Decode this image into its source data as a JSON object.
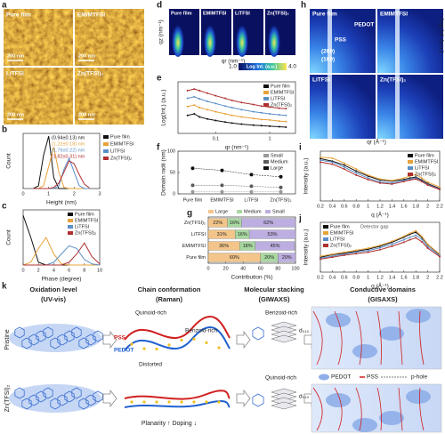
{
  "images": {
    "a": {
      "label": "a",
      "tiles": [
        "Pure film",
        "EMIMTFSI",
        "LiTFSI",
        "Zn(TFSI)₂"
      ],
      "scale": "200 nm"
    },
    "d": {
      "label": "d",
      "tiles": [
        "Pure film",
        "EMIMTFSI",
        "LiTFSI",
        "Zn(TFSI)₂"
      ],
      "ylabel": "qz (nm⁻¹)",
      "xlabel": "qr (nm⁻¹)",
      "colorbar": {
        "label": "Log Int. (a.u.)",
        "min": {
          "value": 1,
          "label": "1.0"
        },
        "max": {
          "value": 4,
          "label": "4.0"
        }
      }
    },
    "h": {
      "label": "h",
      "tiles": [
        "Pure film",
        "EMIMTFSI",
        "LiTFSI",
        "Zn(TFSI)₂"
      ],
      "peaks": [
        "(200)",
        "(100)"
      ],
      "phases": [
        "PSS",
        "PEDOT"
      ],
      "ylabel": "qz (Å⁻¹)",
      "xlabel": "qr (Å⁻¹)",
      "colorbar": "Log Int. (a.u.)"
    }
  },
  "chart_data": [
    {
      "type": "line",
      "label": "b",
      "xlabel": "Height (nm)",
      "ylabel": "Count",
      "x": [
        0.4,
        0.6,
        0.8,
        1.0,
        1.2,
        1.4,
        1.6,
        1.8,
        2.0,
        2.2,
        2.4,
        2.6
      ],
      "xlim": [
        0,
        3
      ],
      "xticks": [
        0,
        1,
        2,
        3
      ],
      "ylim": [
        0,
        1
      ],
      "legend": "right",
      "annotations": [
        "(0.94±0.13) nm",
        "(1.22±0.18) nm",
        "(1.76±0.22) nm",
        "(1.82±0.31) nm"
      ],
      "series": [
        {
          "name": "Pure film",
          "color": "#111111",
          "values": [
            0,
            0.05,
            0.6,
            0.95,
            0.2,
            0,
            0,
            0,
            0,
            0,
            0,
            0
          ]
        },
        {
          "name": "EMIMTFSI",
          "color": "#e8a23a",
          "values": [
            0,
            0,
            0.05,
            0.4,
            0.75,
            0.3,
            0.02,
            0,
            0,
            0,
            0,
            0
          ]
        },
        {
          "name": "LiTFSI",
          "color": "#5b8fc8",
          "values": [
            0,
            0,
            0,
            0,
            0,
            0.05,
            0.35,
            0.55,
            0.3,
            0.05,
            0,
            0
          ]
        },
        {
          "name": "Zn(TFSI)₂",
          "color": "#b03030",
          "values": [
            0,
            0,
            0,
            0,
            0.02,
            0.1,
            0.3,
            0.5,
            0.45,
            0.25,
            0.08,
            0.01
          ]
        }
      ]
    },
    {
      "type": "line",
      "label": "c",
      "xlabel": "Phase (degree)",
      "ylabel": "Count",
      "x": [
        0,
        1,
        2,
        3,
        4,
        5,
        6,
        7,
        8,
        9,
        10
      ],
      "xlim": [
        0,
        10
      ],
      "xticks": [
        0,
        2,
        4,
        6,
        8,
        10
      ],
      "ylim": [
        0,
        1
      ],
      "legend": "upper right",
      "series": [
        {
          "name": "Pure film",
          "color": "#111111",
          "values": [
            0.9,
            0.5,
            0.05,
            0,
            0,
            0,
            0,
            0,
            0,
            0,
            0
          ]
        },
        {
          "name": "EMIMTFSI",
          "color": "#e8a23a",
          "values": [
            0,
            0.05,
            0.3,
            0.5,
            0.2,
            0.02,
            0,
            0,
            0,
            0,
            0
          ]
        },
        {
          "name": "LiTFSI",
          "color": "#5b8fc8",
          "values": [
            0,
            0,
            0,
            0,
            0.05,
            0.2,
            0.35,
            0.3,
            0.1,
            0.02,
            0
          ]
        },
        {
          "name": "Zn(TFSI)₂",
          "color": "#b03030",
          "values": [
            0,
            0,
            0,
            0,
            0,
            0,
            0.05,
            0.2,
            0.4,
            0.15,
            0.02
          ]
        }
      ]
    },
    {
      "type": "line",
      "label": "e",
      "xlabel": "qr (nm⁻¹)",
      "ylabel": "Log(Int.) (a.u.)",
      "log_x": true,
      "markers": true,
      "x": [
        0.03,
        0.04,
        0.05,
        0.07,
        0.1,
        0.15,
        0.2,
        0.3,
        0.5,
        0.7,
        1,
        1.5,
        2
      ],
      "xlim": [
        0.02,
        3
      ],
      "xticks": [
        0.1,
        1
      ],
      "ylim": [
        0,
        10
      ],
      "legend": "upper right",
      "series": [
        {
          "name": "Pure film",
          "color": "#111111",
          "values": [
            3.5,
            3.8,
            3.2,
            2.8,
            2.5,
            2.2,
            2.0,
            1.8,
            1.6,
            1.5,
            1.4,
            1.3,
            1.2
          ]
        },
        {
          "name": "EMIMTFSI",
          "color": "#e8a23a",
          "values": [
            5.2,
            5.5,
            5.0,
            4.6,
            4.2,
            3.8,
            3.5,
            3.2,
            2.9,
            2.7,
            2.6,
            2.4,
            2.3
          ]
        },
        {
          "name": "LiTFSI",
          "color": "#5b8fc8",
          "values": [
            6.8,
            7.1,
            6.7,
            6.2,
            5.8,
            5.3,
            5.0,
            4.6,
            4.2,
            4.0,
            3.8,
            3.6,
            3.5
          ]
        },
        {
          "name": "Zn(TFSI)₂",
          "color": "#b03030",
          "values": [
            8.3,
            8.6,
            8.3,
            7.8,
            7.3,
            6.8,
            6.4,
            6.0,
            5.6,
            5.3,
            5.1,
            4.9,
            4.8
          ]
        }
      ]
    },
    {
      "type": "line",
      "label": "f",
      "ylabel": "Domain radii (nm)",
      "markers": true,
      "categories": [
        "Pure film",
        "EMIMTFSI",
        "LiTFSI",
        "Zn(TFSI)₂"
      ],
      "ylim": [
        0,
        100
      ],
      "yticks": [
        0,
        50,
        100
      ],
      "legend": "upper right",
      "series": [
        {
          "name": "Small",
          "color": "#9a9a9a",
          "values": [
            5,
            5,
            5,
            5
          ]
        },
        {
          "name": "Medium",
          "color": "#5a5a5a",
          "values": [
            20,
            20,
            18,
            15
          ]
        },
        {
          "name": "Large",
          "color": "#111111",
          "values": [
            60,
            55,
            45,
            40
          ]
        }
      ]
    },
    {
      "type": "hbar",
      "label": "g",
      "xlabel": "Contribution (%)",
      "categories": [
        "Zn(TFSI)₂",
        "LiTFSI",
        "EMIMTFSI",
        "Pure film"
      ],
      "xlim": [
        0,
        100
      ],
      "xticks": [
        0,
        20,
        40,
        60,
        80,
        100
      ],
      "legend": "top",
      "series": [
        {
          "name": "Large",
          "color": "#f3c58a",
          "values": [
            22,
            31,
            36,
            60
          ],
          "value_labels": [
            "22%",
            "31%",
            "36%",
            "60%"
          ]
        },
        {
          "name": "Medium",
          "color": "#a8d8a0",
          "values": [
            16,
            16,
            18,
            20
          ],
          "value_labels": [
            "16%",
            "16%",
            "18%",
            "20%"
          ]
        },
        {
          "name": "Small",
          "color": "#bcaee0",
          "values": [
            62,
            53,
            45,
            20
          ],
          "value_labels": [
            "62%",
            "53%",
            "45%",
            "20%"
          ]
        }
      ]
    },
    {
      "type": "line",
      "label": "i",
      "xlabel": "q (Å⁻¹)",
      "ylabel": "Intensity (a.u.)",
      "markers": true,
      "x": [
        0.2,
        0.4,
        0.6,
        0.8,
        1.0,
        1.2,
        1.4,
        1.6,
        1.7,
        1.8,
        1.9,
        2.0,
        2.2
      ],
      "xlim": [
        0.2,
        2.2
      ],
      "xticks": [
        0.2,
        0.4,
        0.6,
        0.8,
        1.0,
        1.2,
        1.4,
        1.6,
        1.8,
        2.0,
        2.2
      ],
      "ylim": [
        0,
        10
      ],
      "legend": "upper right",
      "series": [
        {
          "name": "Pure film",
          "color": "#111111",
          "values": [
            8.5,
            8.0,
            7.2,
            6.0,
            5.0,
            4.2,
            4.0,
            4.3,
            4.6,
            4.8,
            4.2,
            3.5,
            2.5
          ]
        },
        {
          "name": "EMIMTFSI",
          "color": "#e8a23a",
          "values": [
            8.8,
            8.6,
            7.6,
            6.4,
            5.2,
            4.4,
            4.1,
            4.6,
            5.0,
            5.3,
            4.6,
            3.8,
            2.8
          ]
        },
        {
          "name": "LiTFSI",
          "color": "#5b8fc8",
          "values": [
            8.2,
            7.8,
            6.8,
            5.6,
            4.6,
            3.8,
            3.6,
            4.1,
            4.4,
            4.6,
            4.0,
            3.3,
            2.4
          ]
        },
        {
          "name": "Zn(TFSI)₂",
          "color": "#b03030",
          "values": [
            7.8,
            7.4,
            6.4,
            5.2,
            4.3,
            3.6,
            3.4,
            3.9,
            4.2,
            4.4,
            3.9,
            3.2,
            2.3
          ]
        }
      ]
    },
    {
      "type": "line",
      "label": "j",
      "xlabel": "q (Å⁻¹)",
      "ylabel": "Intensity (a.u.)",
      "markers": true,
      "annotations": [
        "Detector gap"
      ],
      "x": [
        0.2,
        0.4,
        0.6,
        0.8,
        1.0,
        1.2,
        1.4,
        1.6,
        1.7,
        1.8,
        1.9,
        2.0,
        2.2
      ],
      "xlim": [
        0.2,
        2.2
      ],
      "xticks": [
        0.2,
        0.4,
        0.6,
        0.8,
        1.0,
        1.2,
        1.4,
        1.6,
        1.8,
        2.0,
        2.2
      ],
      "ylim": [
        0,
        10
      ],
      "legend": "upper left",
      "series": [
        {
          "name": "Pure film",
          "color": "#111111",
          "values": [
            3.0,
            3.5,
            3.8,
            4.2,
            4.6,
            5.2,
            6.0,
            7.0,
            7.6,
            8.0,
            7.0,
            5.5,
            3.5
          ]
        },
        {
          "name": "EMIMTFSI",
          "color": "#e8a23a",
          "values": [
            3.2,
            3.6,
            4.0,
            4.4,
            4.8,
            5.4,
            6.2,
            7.2,
            7.8,
            8.3,
            7.2,
            5.6,
            3.6
          ]
        },
        {
          "name": "LiTFSI",
          "color": "#5b8fc8",
          "values": [
            2.8,
            3.2,
            3.6,
            4.0,
            4.3,
            4.9,
            5.6,
            6.5,
            7.0,
            7.4,
            6.6,
            5.1,
            3.3
          ]
        },
        {
          "name": "Zn(TFSI)₂",
          "color": "#b03030",
          "values": [
            2.6,
            3.0,
            3.4,
            3.7,
            4.0,
            4.5,
            5.2,
            6.0,
            6.5,
            6.9,
            6.1,
            4.8,
            3.1
          ]
        }
      ]
    }
  ],
  "schematic": {
    "label": "k",
    "columns": [
      {
        "title": "Oxidation level",
        "method": "(UV-vis)"
      },
      {
        "title": "Chain conformation",
        "method": "(Raman)"
      },
      {
        "title": "Molecular stacking",
        "method": "(GIWAXS)"
      },
      {
        "title": "Conductive domains",
        "method": "(GISAXS)"
      }
    ],
    "rows": [
      "Pristine",
      "Zn(TFSI)₂"
    ],
    "quinoid": "Quinoid-rich",
    "benzoid": "Benzoid-rich",
    "pss": "PSS",
    "pedot": "PEDOT",
    "distorted": "Distorted",
    "trend": "Planarity ↑  Doping ↓",
    "stacking": [
      "Benzoid-rich",
      "Quinoid-rich"
    ],
    "spacing": "d₀₁₀",
    "legend": {
      "pedot": "PEDOT",
      "pss": "PSS",
      "hole": "p-hole"
    }
  }
}
